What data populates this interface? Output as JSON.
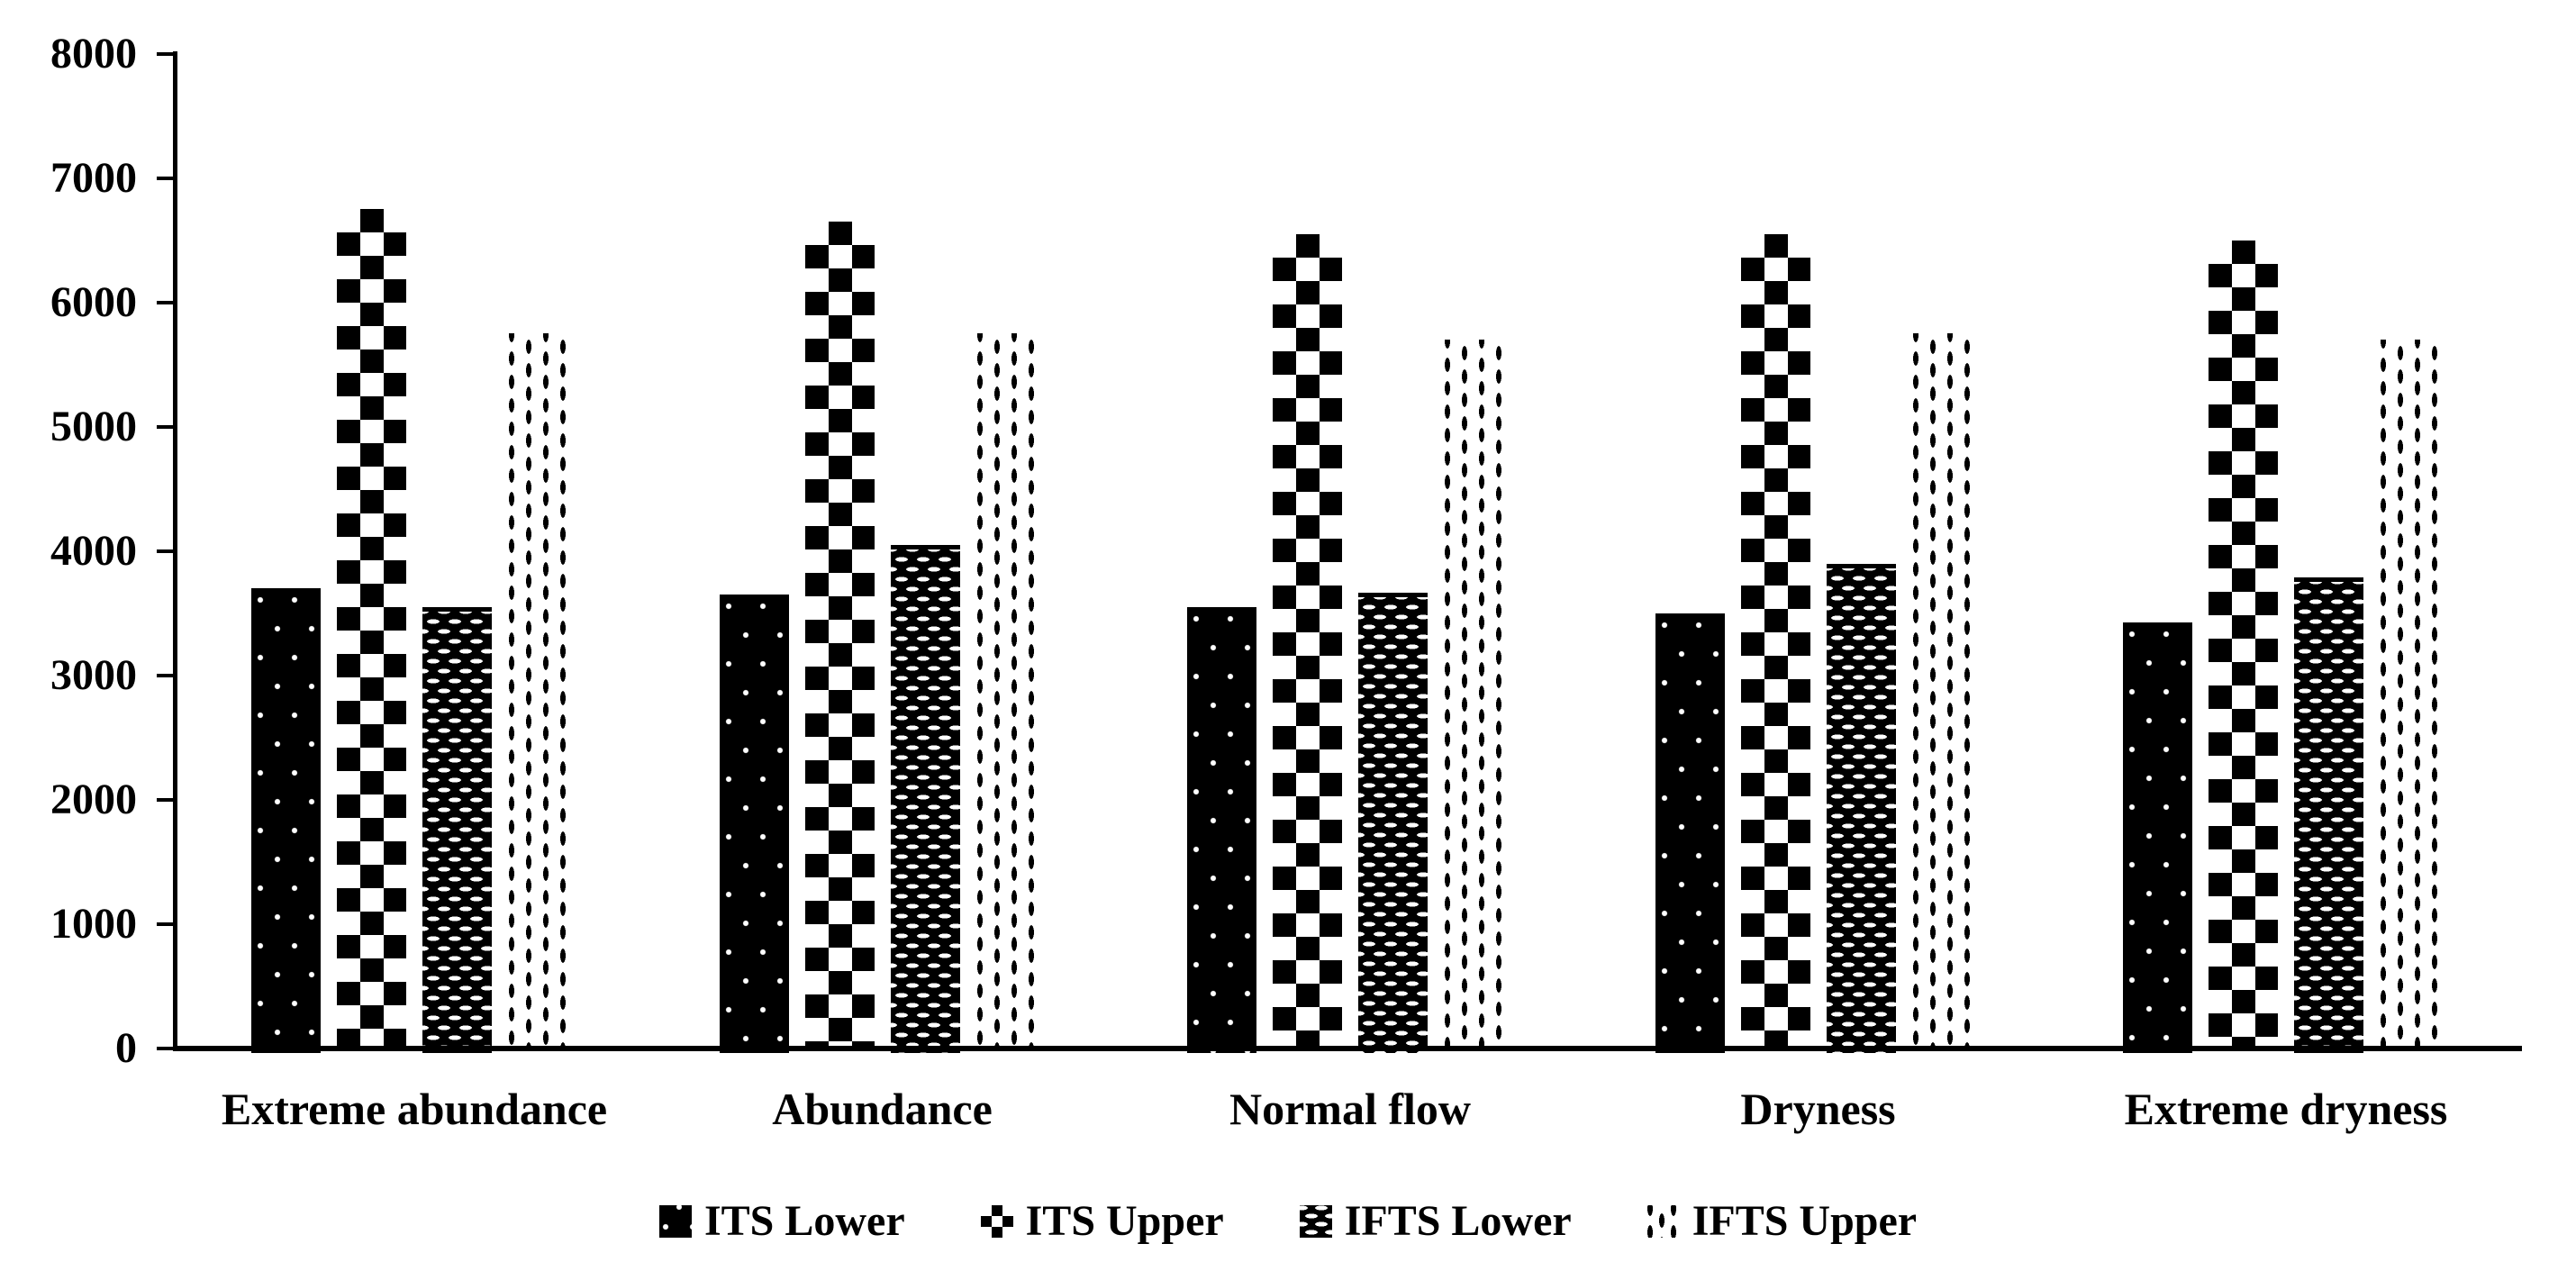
{
  "figure": {
    "background_color": "#ffffff",
    "ink_color": "#000000"
  },
  "chart_data": {
    "type": "bar",
    "title": "",
    "xlabel": "",
    "ylabel": "",
    "categories": [
      "Extreme abundance",
      "Abundance",
      "Normal flow",
      "Dryness",
      "Extreme dryness"
    ],
    "series": [
      {
        "name": "ITS Lower",
        "pattern": "white-dots-on-black",
        "values": [
          3700,
          3650,
          3550,
          3500,
          3430
        ]
      },
      {
        "name": "ITS Upper",
        "pattern": "black-white-checkerboard",
        "values": [
          6750,
          6650,
          6550,
          6550,
          6500
        ]
      },
      {
        "name": "IFTS Lower",
        "pattern": "white-dashes-on-black-weave",
        "values": [
          3550,
          4050,
          3670,
          3900,
          3790
        ]
      },
      {
        "name": "IFTS Upper",
        "pattern": "black-vertical-dashes-on-white",
        "values": [
          5750,
          5750,
          5700,
          5750,
          5700
        ]
      }
    ],
    "ylim": [
      0,
      8000
    ],
    "ytick_step": 1000,
    "ytick_labels": [
      "0",
      "1000",
      "2000",
      "3000",
      "4000",
      "5000",
      "6000",
      "7000",
      "8000"
    ],
    "grid": false,
    "legend_position": "bottom"
  }
}
